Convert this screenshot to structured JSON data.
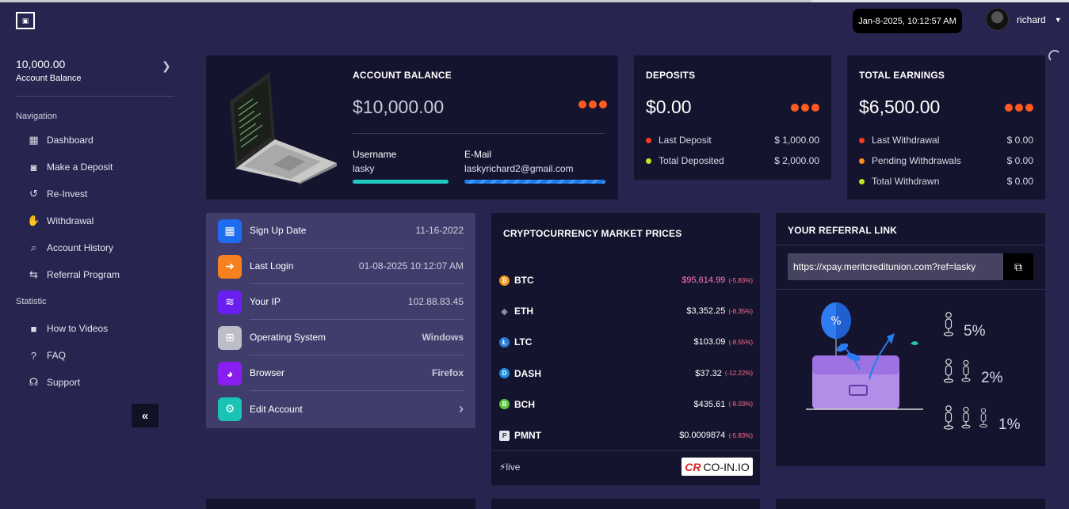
{
  "header": {
    "logo_text": "▣",
    "datetime": "Jan-8-2025, 10:12:57 AM",
    "username": "richard"
  },
  "sidebar": {
    "balance_value": "10,000.00",
    "balance_label": "Account Balance",
    "nav_heading": "Navigation",
    "statistic_heading": "Statistic",
    "items": [
      {
        "label": "Dashboard",
        "icon": "grid-icon"
      },
      {
        "label": "Make a Deposit",
        "icon": "piggy-bank-icon"
      },
      {
        "label": "Re-Invest",
        "icon": "history-icon"
      },
      {
        "label": "Withdrawal",
        "icon": "hand-coin-icon"
      },
      {
        "label": "Account History",
        "icon": "search-dollar-icon"
      },
      {
        "label": "Referral Program",
        "icon": "handshake-icon"
      }
    ],
    "stat_items": [
      {
        "label": "How to Videos",
        "icon": "video-icon"
      },
      {
        "label": "FAQ",
        "icon": "question-icon"
      },
      {
        "label": "Support",
        "icon": "headset-icon"
      }
    ],
    "collapse_glyph": "«"
  },
  "account": {
    "title": "ACCOUNT BALANCE",
    "amount": "$10,000.00",
    "username_label": "Username",
    "username_value": "lasky",
    "email_label": "E-Mail",
    "email_value": "laskyrichard2@gmail.com"
  },
  "deposits": {
    "title": "DEPOSITS",
    "amount": "$0.00",
    "rows": [
      {
        "label": "Last Deposit",
        "value": "$ 1,000.00",
        "color": "#ff3b1f"
      },
      {
        "label": "Total Deposited",
        "value": "$ 2,000.00",
        "color": "#c6e21f"
      }
    ]
  },
  "earnings": {
    "title": "TOTAL EARNINGS",
    "amount": "$6,500.00",
    "rows": [
      {
        "label": "Last Withdrawal",
        "value": "$ 0.00",
        "color": "#ff3b1f"
      },
      {
        "label": "Pending Withdrawals",
        "value": "$ 0.00",
        "color": "#ff8a1f"
      },
      {
        "label": "Total Withdrawn",
        "value": "$ 0.00",
        "color": "#c6e21f"
      }
    ]
  },
  "info": [
    {
      "label": "Sign Up Date",
      "value": "11-16-2022",
      "color": "#1e6cf0",
      "icon": "calendar-icon",
      "glyph": "▦"
    },
    {
      "label": "Last Login",
      "value": "01-08-2025 10:12:07 AM",
      "color": "#f7811e",
      "icon": "login-icon",
      "glyph": "➜"
    },
    {
      "label": "Your IP",
      "value": "102.88.83.45",
      "color": "#6a1ef0",
      "icon": "wifi-icon",
      "glyph": "≋"
    },
    {
      "label": "Operating System",
      "value": "Windows",
      "color": "#bdbdc8",
      "icon": "windows-icon",
      "glyph": "⊞"
    },
    {
      "label": "Browser",
      "value": "Firefox",
      "color": "#8a1ef0",
      "icon": "firefox-icon",
      "glyph": "◕"
    },
    {
      "label": "Edit Account",
      "value": "›",
      "color": "#19c4b4",
      "icon": "gear-icon",
      "glyph": "⚙"
    }
  ],
  "crypto": {
    "title": "CRYPTOCURRENCY MARKET PRICES",
    "coins": [
      {
        "symbol": "BTC",
        "price": "$95,614.99",
        "change": "(-5.83%)",
        "color": "#f7931a",
        "glyph": "₿",
        "neg": true
      },
      {
        "symbol": "ETH",
        "price": "$3,352.25",
        "change": "(-8.35%)",
        "color": "#5c5c7a",
        "glyph": "◆",
        "neg": false
      },
      {
        "symbol": "LTC",
        "price": "$103.09",
        "change": "(-8.55%)",
        "color": "#2a7ad8",
        "glyph": "Ł",
        "neg": false
      },
      {
        "symbol": "DASH",
        "price": "$37.32",
        "change": "(-12.22%)",
        "color": "#1c8de0",
        "glyph": "D",
        "neg": false
      },
      {
        "symbol": "BCH",
        "price": "$435.61",
        "change": "(-8.03%)",
        "color": "#5cc33a",
        "glyph": "B",
        "neg": false
      },
      {
        "symbol": "PMNT",
        "price": "$0.0009874",
        "change": "(-5.83%)",
        "color": "#3a3a5a",
        "glyph": "P",
        "neg": false
      }
    ],
    "live_label": "⚡live",
    "provider_mark": "CR",
    "provider_name": "CO-IN.IO"
  },
  "referral": {
    "title": "YOUR REFERRAL LINK",
    "link": "https://xpay.meritcreditunion.com?ref=lasky",
    "tiers": [
      {
        "pct": "5%",
        "people": 1
      },
      {
        "pct": "2%",
        "people": 2
      },
      {
        "pct": "1%",
        "people": 3
      }
    ]
  }
}
